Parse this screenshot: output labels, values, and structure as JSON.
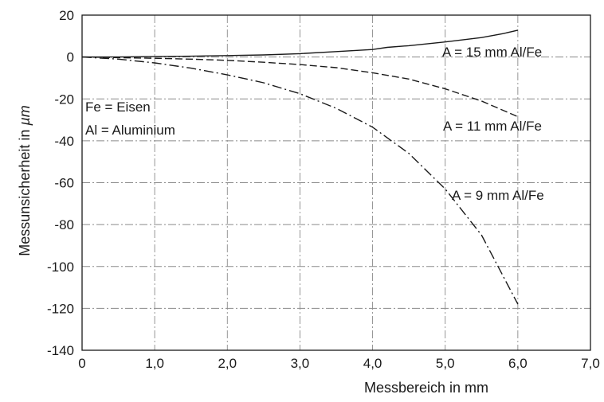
{
  "chart_data": {
    "type": "line",
    "title": "",
    "xlabel": "Messbereich in mm",
    "ylabel_prefix": "Messunsicherheit in ",
    "ylabel_unit": "µm",
    "xlim": [
      0,
      7
    ],
    "ylim": [
      -140,
      20
    ],
    "x_ticks": [
      0,
      1,
      2,
      3,
      4,
      5,
      6,
      7
    ],
    "x_tick_labels": [
      "0",
      "1,0",
      "2,0",
      "3,0",
      "4,0",
      "5,0",
      "6,0",
      "7,0"
    ],
    "y_ticks": [
      20,
      0,
      -20,
      -40,
      -60,
      -80,
      -100,
      -120,
      -140
    ],
    "y_tick_labels": [
      "20",
      "0",
      "-20",
      "-40",
      "-60",
      "-80",
      "-100",
      "-120",
      "-140"
    ],
    "grid": true,
    "legend_lines": [
      "Fe = Eisen",
      "Al = Aluminium"
    ],
    "series": [
      {
        "name": "A = 15 mm Al/Fe",
        "line_style": "solid",
        "x": [
          0,
          0.5,
          1.0,
          1.5,
          2.0,
          2.5,
          3.0,
          3.5,
          4.0,
          4.2,
          4.5,
          5.0,
          5.5,
          5.8,
          6.0
        ],
        "y": [
          0,
          0,
          0.2,
          0.4,
          0.7,
          1.0,
          1.6,
          2.6,
          3.6,
          4.6,
          5.4,
          7.2,
          9.3,
          11.2,
          12.8
        ]
      },
      {
        "name": "A = 11 mm Al/Fe",
        "line_style": "dashed",
        "x": [
          0,
          0.5,
          1.0,
          1.5,
          2.0,
          2.5,
          3.0,
          3.5,
          4.0,
          4.5,
          5.0,
          5.5,
          6.0
        ],
        "y": [
          0,
          -0.3,
          -0.6,
          -1.0,
          -1.6,
          -2.5,
          -3.6,
          -5.1,
          -7.5,
          -10.5,
          -15.2,
          -21.0,
          -28.5
        ]
      },
      {
        "name": "A = 9 mm Al/Fe",
        "line_style": "dashdot",
        "x": [
          0,
          0.5,
          1.0,
          1.5,
          2.0,
          2.5,
          3.0,
          3.5,
          4.0,
          4.5,
          5.0,
          5.5,
          6.0
        ],
        "y": [
          0,
          -1.0,
          -2.8,
          -5.3,
          -8.5,
          -12.3,
          -17.5,
          -24.5,
          -33.5,
          -46.0,
          -63.0,
          -85.0,
          -118.0
        ]
      }
    ]
  }
}
